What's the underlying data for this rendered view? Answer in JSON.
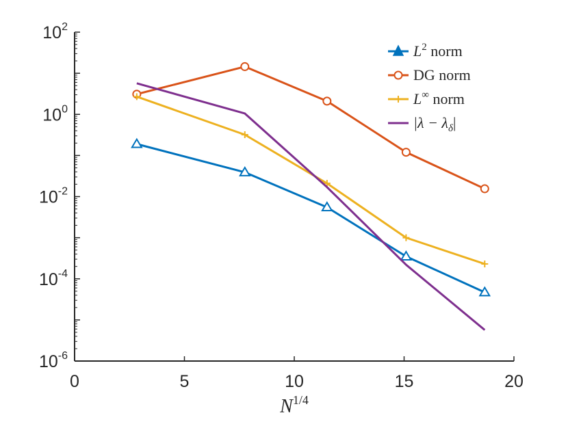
{
  "chart_data": {
    "type": "line",
    "xlabel": {
      "base": "N",
      "sup": "1/4"
    },
    "ylabel": "",
    "xlim": [
      0,
      20
    ],
    "ylim": [
      1e-06,
      100
    ],
    "yscale": "log",
    "x_ticks": [
      "0",
      "5",
      "10",
      "15",
      "20"
    ],
    "y_ticks": [
      {
        "base": "10",
        "exp": "2"
      },
      {
        "base": "10",
        "exp": "0"
      },
      {
        "base": "10",
        "exp": "-2"
      },
      {
        "base": "10",
        "exp": "-4"
      },
      {
        "base": "10",
        "exp": "-6"
      }
    ],
    "legend_position": "top-right",
    "series": [
      {
        "name": "L2 norm",
        "label_parts": {
          "main": "L",
          "sup": "2",
          "rest": " norm",
          "italic_main": true
        },
        "color": "#0072BD",
        "marker": "triangle",
        "x": [
          2.83,
          7.75,
          11.49,
          15.09,
          18.67
        ],
        "y": [
          0.19,
          0.039,
          0.0055,
          0.00035,
          4.7e-05
        ]
      },
      {
        "name": "DG norm",
        "label_parts": {
          "main": "DG norm",
          "sup": "",
          "rest": "",
          "italic_main": false
        },
        "color": "#D95319",
        "marker": "circle",
        "x": [
          2.83,
          7.75,
          11.49,
          15.09,
          18.67
        ],
        "y": [
          3.1,
          14.5,
          2.1,
          0.12,
          0.0155
        ]
      },
      {
        "name": "L∞ norm",
        "label_parts": {
          "main": "L",
          "sup": "∞",
          "rest": " norm",
          "italic_main": true
        },
        "color": "#EDB120",
        "marker": "plus",
        "x": [
          2.83,
          7.75,
          11.49,
          15.09,
          18.67
        ],
        "y": [
          2.7,
          0.32,
          0.021,
          0.001,
          0.00023
        ]
      },
      {
        "name": "|λ − λδ|",
        "label_parts": {
          "main": "|λ − λ",
          "sub": "δ",
          "rest": "|",
          "italic_main": true
        },
        "color": "#7E2F8E",
        "marker": "none",
        "x": [
          2.83,
          7.75,
          11.49,
          15.09,
          18.67
        ],
        "y": [
          5.7,
          1.05,
          0.017,
          0.00022,
          5.7e-06
        ]
      }
    ]
  }
}
